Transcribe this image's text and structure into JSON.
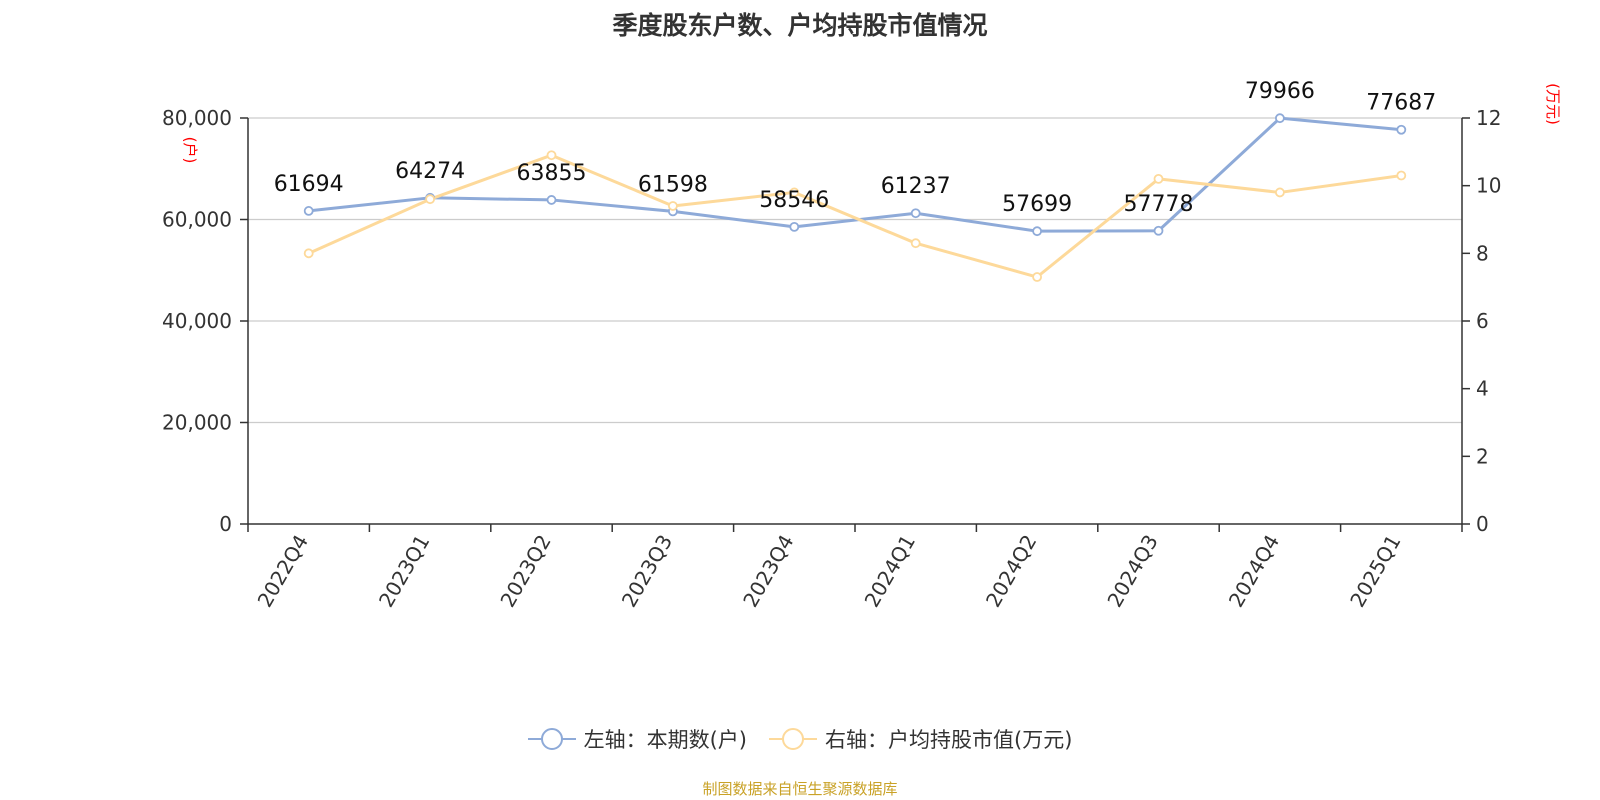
{
  "chart_data": {
    "type": "line",
    "title": "季度股东户数、户均持股市值情况",
    "categories": [
      "2022Q4",
      "2023Q1",
      "2023Q2",
      "2023Q3",
      "2023Q4",
      "2024Q1",
      "2024Q2",
      "2024Q3",
      "2024Q4",
      "2025Q1"
    ],
    "series": [
      {
        "name": "左轴：本期数(户)",
        "axis": "left",
        "color": "#8eaad8",
        "values": [
          61694,
          64274,
          63855,
          61598,
          58546,
          61237,
          57699,
          57778,
          79966,
          77687
        ],
        "data_labels": [
          "61694",
          "64274",
          "63855",
          "61598",
          "58546",
          "61237",
          "57699",
          "57778",
          "79966",
          "77687"
        ]
      },
      {
        "name": "右轴：户均持股市值(万元)",
        "axis": "right",
        "color": "#fdd99a",
        "values": [
          8.0,
          9.6,
          10.9,
          9.4,
          9.8,
          8.3,
          7.3,
          10.2,
          9.8,
          10.3
        ]
      }
    ],
    "y_left": {
      "label": "(户)",
      "min": 0,
      "max": 80000,
      "ticks": [
        0,
        20000,
        40000,
        60000,
        80000
      ],
      "tick_labels": [
        "0",
        "20,000",
        "40,000",
        "60,000",
        "80,000"
      ]
    },
    "y_right": {
      "label": "(万元)",
      "min": 0,
      "max": 12,
      "ticks": [
        0,
        2,
        4,
        6,
        8,
        10,
        12
      ],
      "tick_labels": [
        "0",
        "2",
        "4",
        "6",
        "8",
        "10",
        "12"
      ]
    },
    "grid": true,
    "legend_position": "bottom"
  },
  "source_note": "制图数据来自恒生聚源数据库",
  "colors": {
    "axis": "#333333",
    "grid": "#cccccc",
    "axis_label_red": "#ff0000",
    "text": "#333333"
  }
}
